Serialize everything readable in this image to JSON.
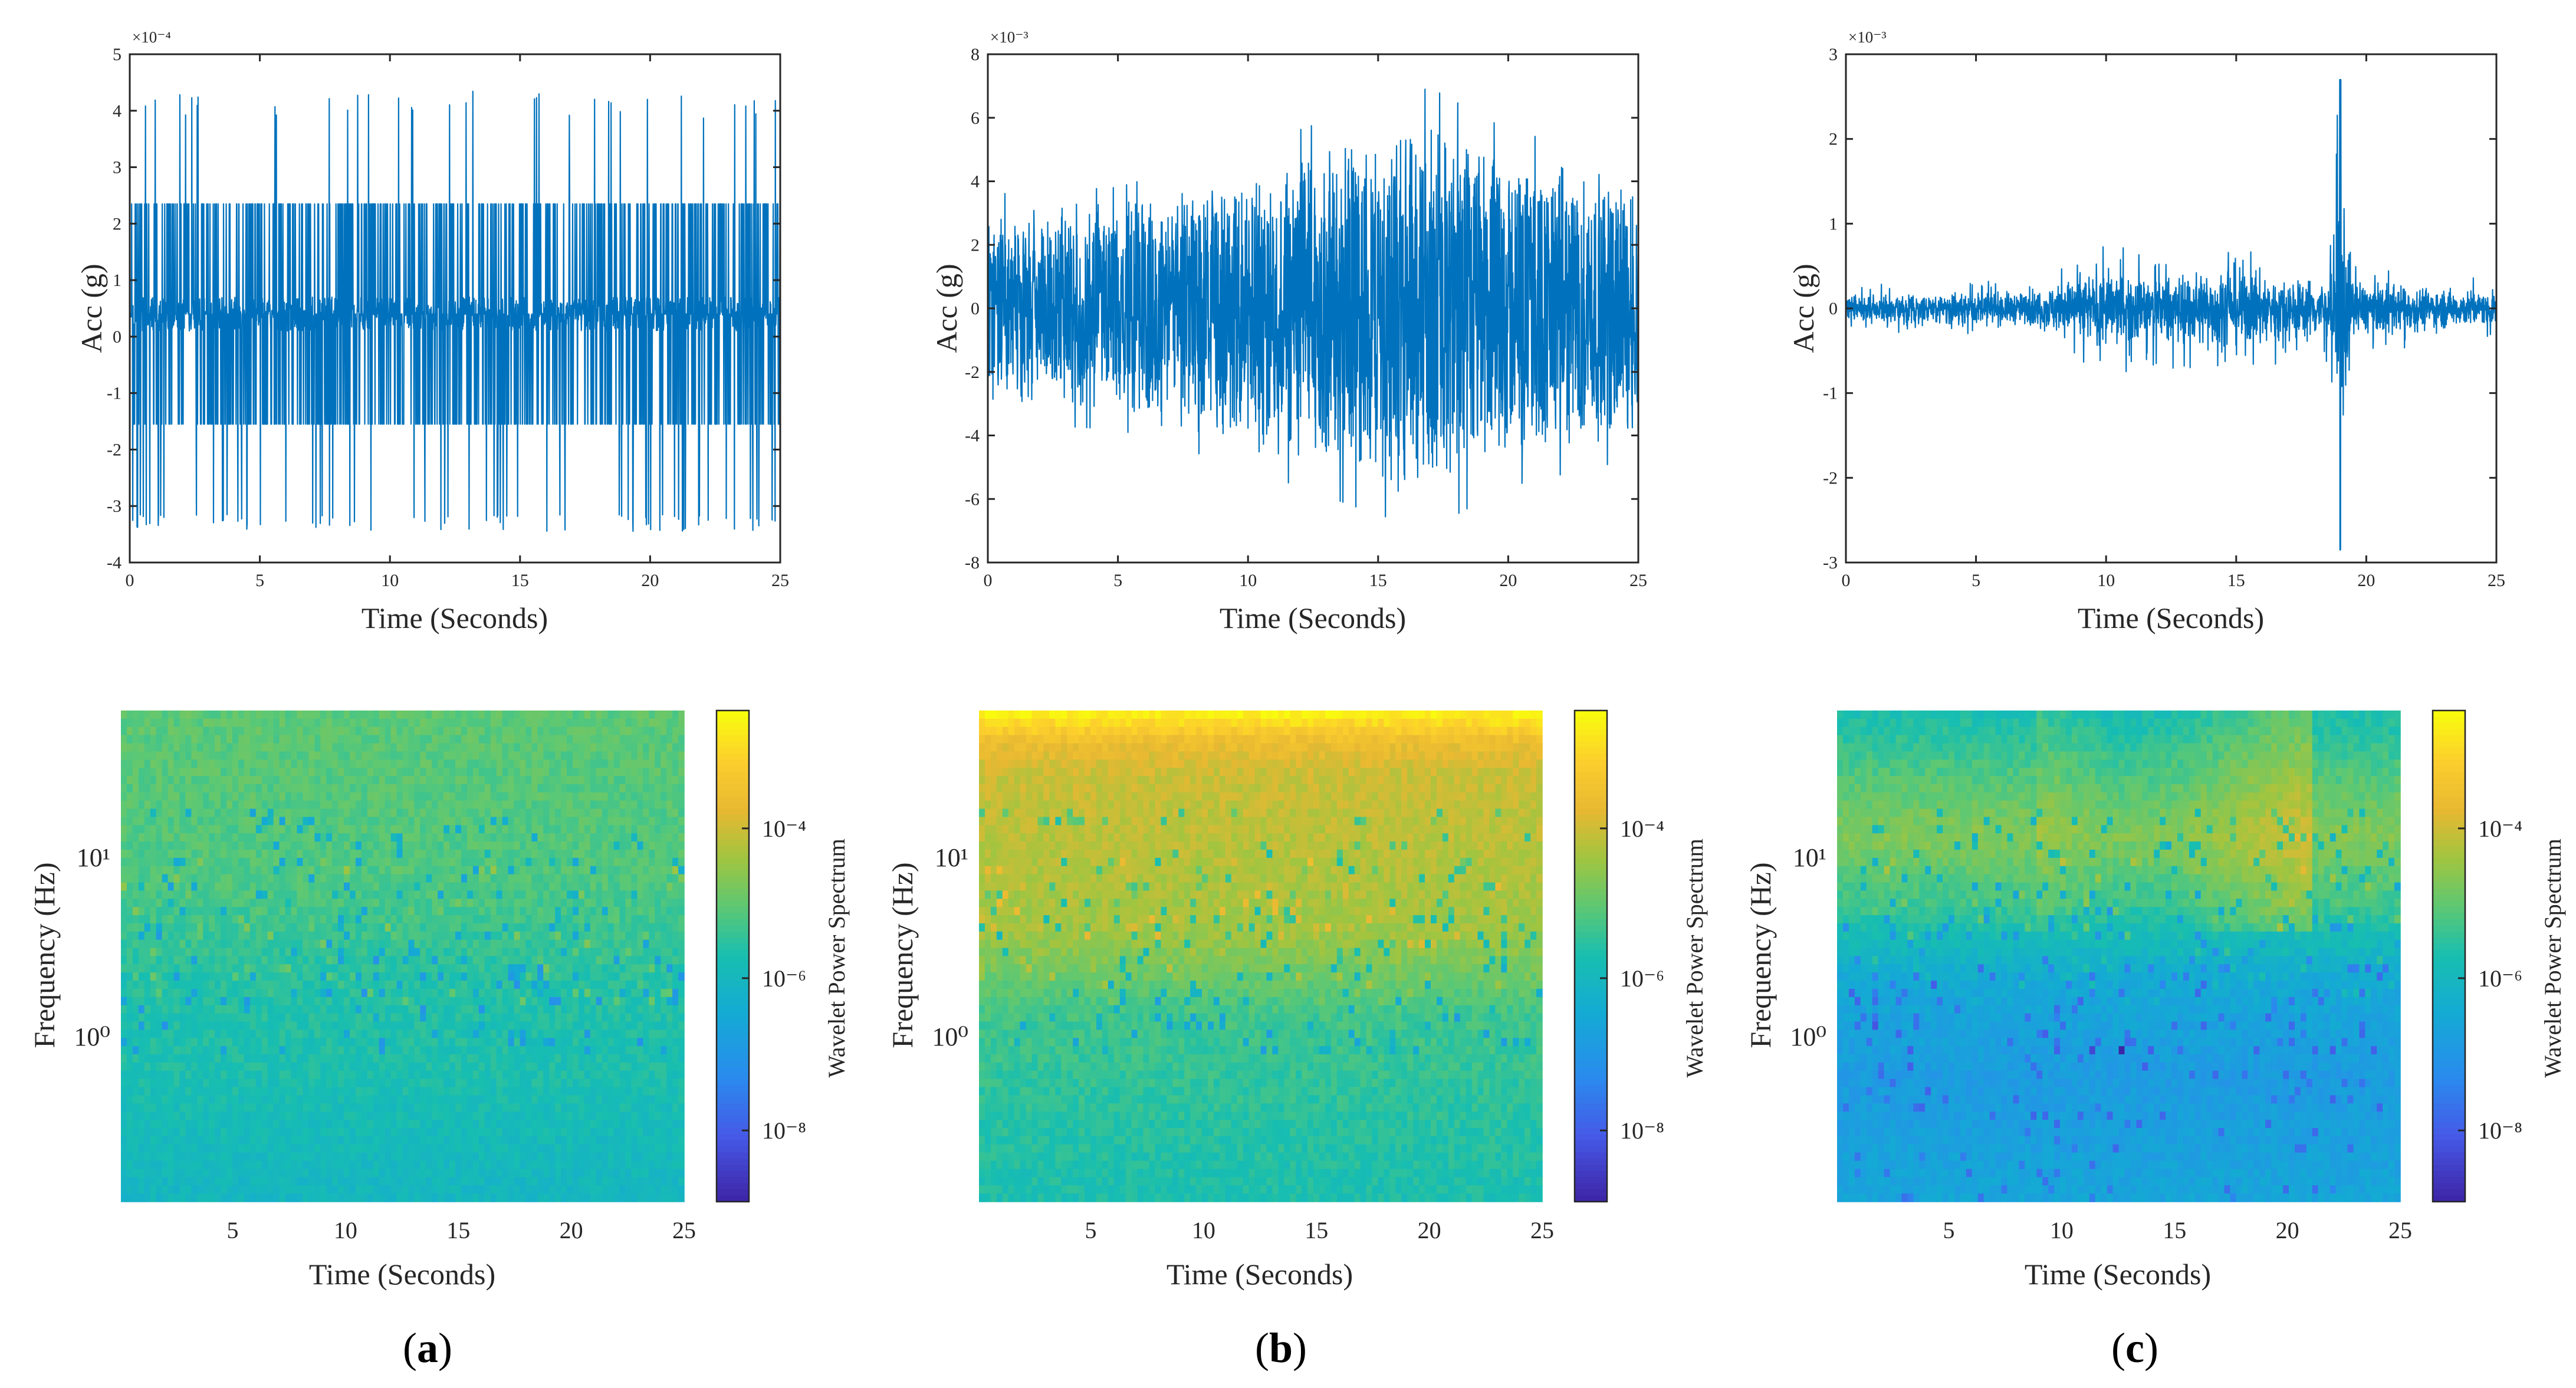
{
  "chart_data": [
    {
      "type": "line",
      "panel": "a",
      "xlabel": "Time (Seconds)",
      "ylabel": "Acc (g)",
      "exponent_label": "×10⁻⁴",
      "xlim": [
        0,
        25
      ],
      "ylim": [
        -4,
        5
      ],
      "xticks": [
        0,
        5,
        10,
        15,
        20,
        25
      ],
      "yticks": [
        -4,
        -3,
        -2,
        -1,
        0,
        1,
        2,
        3,
        4,
        5
      ],
      "color": "#0072BD",
      "series": [
        {
          "name": "acceleration",
          "kind": "quantized-spiky",
          "levels": [
            -1.55,
            0.4,
            2.35
          ],
          "peak_max": 4.35,
          "peak_min": -3.45
        }
      ]
    },
    {
      "type": "line",
      "panel": "b",
      "xlabel": "Time (Seconds)",
      "ylabel": "Acc (g)",
      "exponent_label": "×10⁻³",
      "xlim": [
        0,
        25
      ],
      "ylim": [
        -8,
        8
      ],
      "xticks": [
        0,
        5,
        10,
        15,
        20,
        25
      ],
      "yticks": [
        -8,
        -6,
        -4,
        -2,
        0,
        2,
        4,
        6,
        8
      ],
      "color": "#0072BD",
      "series": [
        {
          "name": "acceleration",
          "kind": "dense-noise",
          "envelope": [
            [
              0,
              3.2
            ],
            [
              5,
              3.4
            ],
            [
              10,
              4.5
            ],
            [
              15,
              5.8
            ],
            [
              17,
              6.2
            ],
            [
              20,
              5.0
            ],
            [
              25,
              4.2
            ]
          ],
          "peak_max": 6.8,
          "peak_min": -6.6
        }
      ]
    },
    {
      "type": "line",
      "panel": "c",
      "xlabel": "Time (Seconds)",
      "ylabel": "Acc (g)",
      "exponent_label": "×10⁻³",
      "xlim": [
        0,
        25
      ],
      "ylim": [
        -3,
        3
      ],
      "xticks": [
        0,
        5,
        10,
        15,
        20,
        25
      ],
      "yticks": [
        -3,
        -2,
        -1,
        0,
        1,
        2,
        3
      ],
      "color": "#0072BD",
      "series": [
        {
          "name": "acceleration",
          "kind": "bursty-noise",
          "envelope": [
            [
              0,
              0.25
            ],
            [
              5,
              0.3
            ],
            [
              7,
              0.3
            ],
            [
              10,
              0.75
            ],
            [
              12,
              0.6
            ],
            [
              15,
              0.85
            ],
            [
              17,
              0.55
            ],
            [
              18.6,
              0.6
            ],
            [
              19,
              2.7
            ],
            [
              19.5,
              0.5
            ],
            [
              25,
              0.3
            ]
          ],
          "peak_max": 2.7,
          "peak_min": -2.85
        }
      ]
    },
    {
      "type": "heatmap",
      "panel": "a",
      "xlabel": "Time (Seconds)",
      "ylabel": "Frequency (Hz)",
      "colorbar_label": "Wavelet Power Spectrum",
      "xticks": [
        5,
        10,
        15,
        20,
        25
      ],
      "yticks": [
        "10⁰",
        "10¹"
      ],
      "colorbar_ticks": [
        "10⁻⁴",
        "10⁻⁶",
        "10⁻⁸"
      ],
      "colormap": "parula",
      "level_profile": [
        [
          0,
          0.6
        ],
        [
          0.35,
          0.58
        ],
        [
          0.55,
          0.52
        ],
        [
          0.75,
          0.5
        ],
        [
          1,
          0.45
        ]
      ]
    },
    {
      "type": "heatmap",
      "panel": "b",
      "xlabel": "Time (Seconds)",
      "ylabel": "Frequency (Hz)",
      "colorbar_label": "Wavelet Power Spectrum",
      "xticks": [
        5,
        10,
        15,
        20,
        25
      ],
      "yticks": [
        "10⁰",
        "10¹"
      ],
      "colorbar_ticks": [
        "10⁻⁴",
        "10⁻⁶",
        "10⁻⁸"
      ],
      "colormap": "parula",
      "level_profile": [
        [
          0,
          0.97
        ],
        [
          0.06,
          0.82
        ],
        [
          0.12,
          0.76
        ],
        [
          0.45,
          0.7
        ],
        [
          0.62,
          0.56
        ],
        [
          1,
          0.5
        ]
      ]
    },
    {
      "type": "heatmap",
      "panel": "c",
      "xlabel": "Time (Seconds)",
      "ylabel": "Frequency (Hz)",
      "colorbar_label": "Wavelet Power Spectrum",
      "xticks": [
        5,
        10,
        15,
        20,
        25
      ],
      "yticks": [
        "10⁰",
        "10¹"
      ],
      "colorbar_ticks": [
        "10⁻⁴",
        "10⁻⁶",
        "10⁻⁸"
      ],
      "colormap": "parula",
      "level_profile": [
        [
          0,
          0.5
        ],
        [
          0.12,
          0.58
        ],
        [
          0.25,
          0.66
        ],
        [
          0.4,
          0.55
        ],
        [
          0.55,
          0.38
        ],
        [
          0.75,
          0.32
        ],
        [
          1,
          0.36
        ]
      ]
    }
  ],
  "captions": [
    {
      "open": "(",
      "letter": "a",
      "close": ")"
    },
    {
      "open": "(",
      "letter": "b",
      "close": ")"
    },
    {
      "open": "(",
      "letter": "c",
      "close": ")"
    }
  ]
}
